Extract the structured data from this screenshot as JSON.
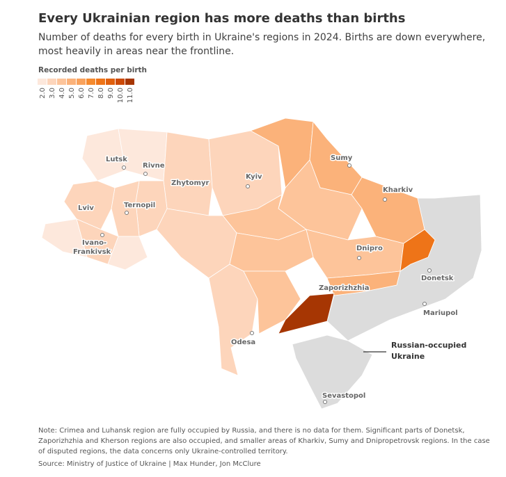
{
  "title": "Every Ukrainian region has more deaths than births",
  "subtitle": "Number of deaths for every birth in Ukraine's regions in 2024. Births are down everywhere, most heavily in areas near the frontline.",
  "legend": {
    "title": "Recorded deaths per birth",
    "labels": [
      "2.0",
      "3.0",
      "4.0",
      "5.0",
      "6.0",
      "7.0",
      "8.0",
      "9.0",
      "10.0",
      "11.0"
    ],
    "colors": [
      "#fde8dc",
      "#fdd5bb",
      "#fdc49a",
      "#fbb27a",
      "#f9a25c",
      "#f58a2e",
      "#ee7418",
      "#e0600e",
      "#cc4a08",
      "#a63603"
    ]
  },
  "cities": [
    "Lutsk",
    "Rivne",
    "Zhytomyr",
    "Kyiv",
    "Sumy",
    "Kharkiv",
    "Lviv",
    "Ternopil",
    "Ivano-",
    "Frankivsk",
    "Dnipro",
    "Donetsk",
    "Zaporizhzhia",
    "Mariupol",
    "Odesa",
    "Sevastopol"
  ],
  "occupied_label": [
    "Russian-occupied",
    "Ukraine"
  ],
  "occupied_color": "#dcdcdc",
  "note": "Note: Crimea and Luhansk region are fully occupied by Russia, and there is no data for them. Significant parts of Donetsk, Zaporizhzhia and Kherson regions are also occupied, and smaller areas of Kharkiv, Sumy and Dnipropetrovsk regions. In the case of disputed regions, the data concerns only Ukraine-controlled territory.",
  "source": "Source: Ministry of Justice of Ukraine | Max Hunder, Jon McClure"
}
